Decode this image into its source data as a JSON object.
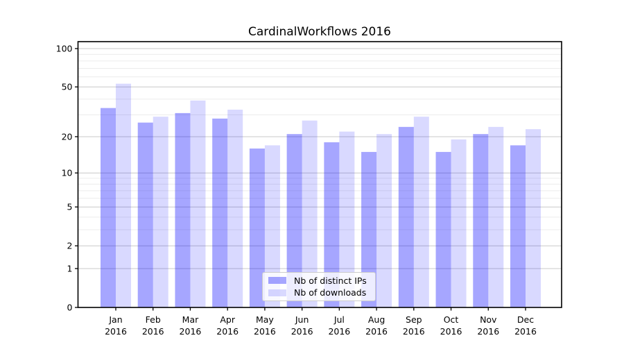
{
  "chart_data": {
    "type": "bar",
    "title": "CardinalWorkflows 2016",
    "categories": [
      "Jan",
      "Feb",
      "Mar",
      "Apr",
      "May",
      "Jun",
      "Jul",
      "Aug",
      "Sep",
      "Oct",
      "Nov",
      "Dec"
    ],
    "category_year": "2016",
    "series": [
      {
        "name": "Nb of distinct IPs",
        "color": "#0000ff",
        "alpha": 0.35,
        "values": [
          34,
          26,
          31,
          28,
          16,
          21,
          18,
          15,
          24,
          15,
          21,
          17
        ]
      },
      {
        "name": "Nb of downloads",
        "color": "#0000ff",
        "alpha": 0.15,
        "values": [
          53,
          29,
          39,
          33,
          17,
          27,
          22,
          21,
          29,
          19,
          24,
          23
        ]
      }
    ],
    "yscale": "log1p",
    "y_major_ticks": [
      0,
      1,
      2,
      5,
      10,
      20,
      50,
      100
    ],
    "y_minor_gridlines": [
      3,
      4,
      6,
      7,
      8,
      9,
      30,
      40,
      60,
      70,
      80,
      90
    ],
    "ylim": [
      0,
      113
    ],
    "grid": true,
    "legend_position": "lower center",
    "colors": {
      "major_grid": "#c8c8c8",
      "minor_grid": "#ececec",
      "spine": "#000000",
      "text": "#000000",
      "background": "#ffffff"
    }
  }
}
